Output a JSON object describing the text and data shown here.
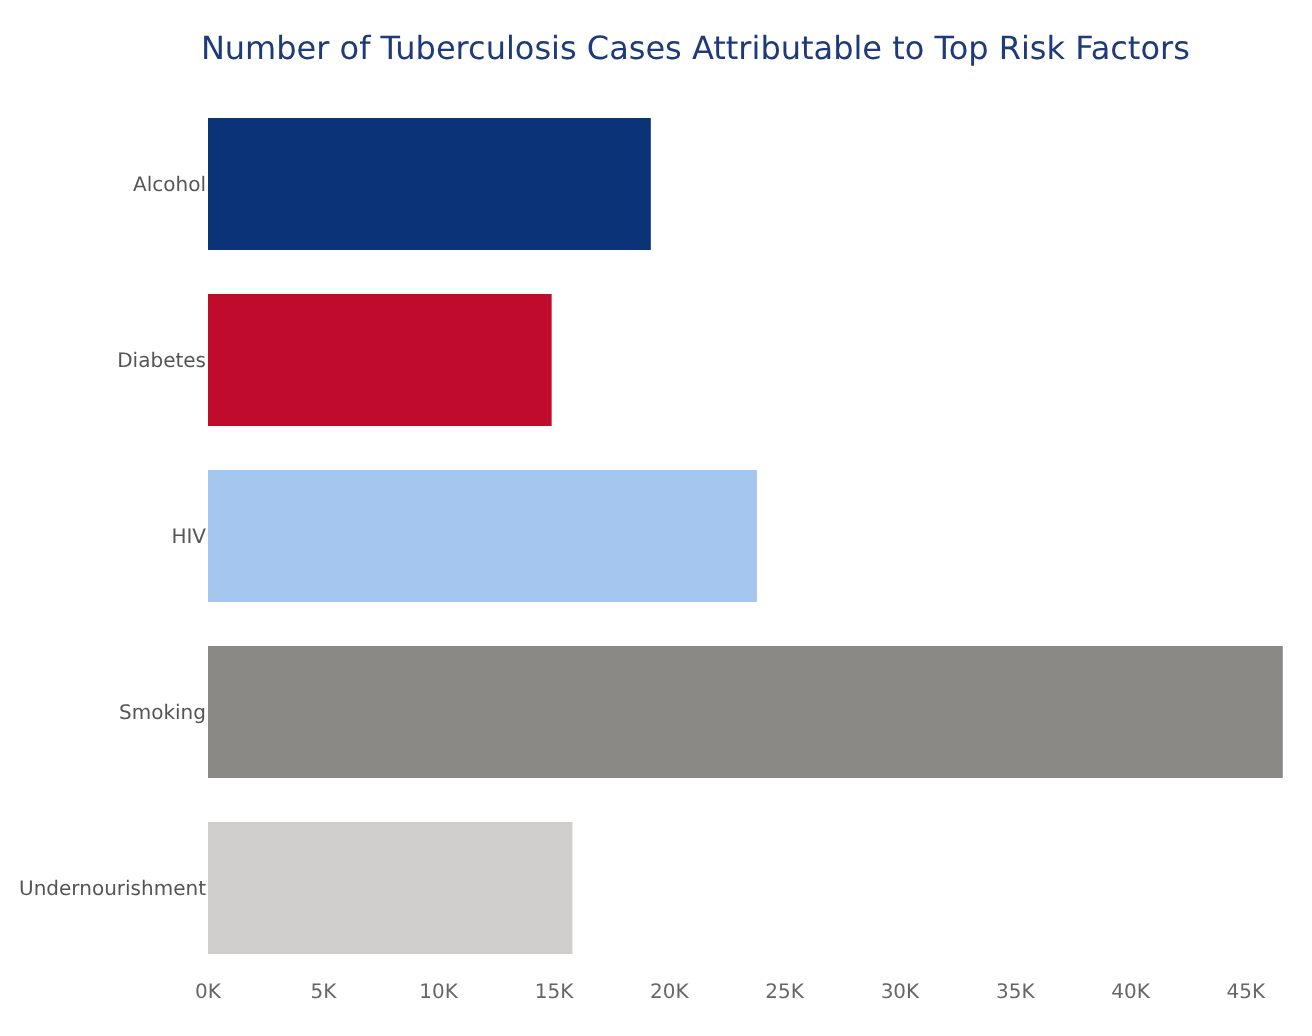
{
  "chart_data": {
    "type": "bar",
    "orientation": "horizontal",
    "title": "Number of Tuberculosis Cases Attributable to Top Risk Factors",
    "categories": [
      "Alcohol",
      "Diabetes",
      "HIV",
      "Smoking",
      "Undernourishment"
    ],
    "values": [
      19200,
      14900,
      23800,
      46600,
      15800
    ],
    "colors": [
      "#0a3378",
      "#c10b2c",
      "#a4c6ef",
      "#8b8986",
      "#d0cfcd"
    ],
    "xlim": [
      0,
      47000
    ],
    "xticks": [
      {
        "value": 0,
        "label": "0K"
      },
      {
        "value": 5000,
        "label": "5K"
      },
      {
        "value": 10000,
        "label": "10K"
      },
      {
        "value": 15000,
        "label": "15K"
      },
      {
        "value": 20000,
        "label": "20K"
      },
      {
        "value": 25000,
        "label": "25K"
      },
      {
        "value": 30000,
        "label": "30K"
      },
      {
        "value": 35000,
        "label": "35K"
      },
      {
        "value": 40000,
        "label": "40K"
      },
      {
        "value": 45000,
        "label": "45K"
      }
    ]
  }
}
